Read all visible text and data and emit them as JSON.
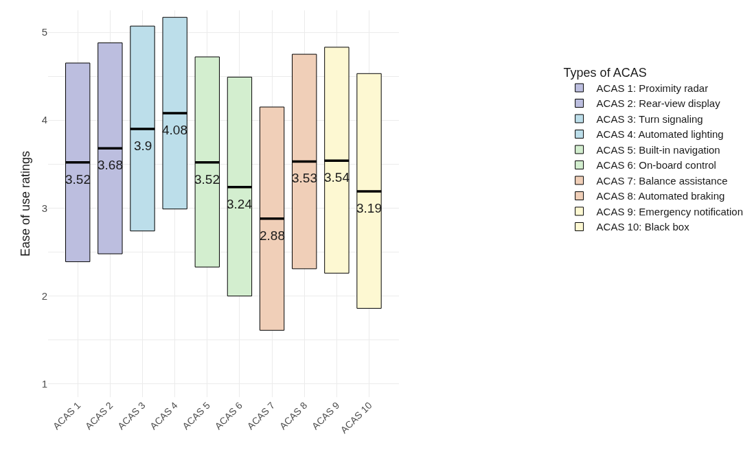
{
  "chart_data": {
    "type": "box",
    "ylabel": "Ease of use ratings",
    "legend_title": "Types of ACAS",
    "categories": [
      "ACAS 1",
      "ACAS 2",
      "ACAS 3",
      "ACAS 4",
      "ACAS 5",
      "ACAS 6",
      "ACAS 7",
      "ACAS 8",
      "ACAS 9",
      "ACAS 10"
    ],
    "series": [
      {
        "name": "ACAS 1: Proximity radar",
        "color": "#bcbedf",
        "x": [
          "ACAS 1"
        ],
        "boxes": [
          {
            "low": 2.39,
            "q1": 2.39,
            "median": 3.52,
            "q3": 4.65,
            "high": 4.65
          }
        ],
        "value_labels": [
          "3.52"
        ]
      },
      {
        "name": "ACAS 2: Rear-view display",
        "color": "#bcbedf",
        "x": [
          "ACAS 2"
        ],
        "boxes": [
          {
            "low": 2.48,
            "q1": 2.48,
            "median": 3.68,
            "q3": 4.88,
            "high": 4.88
          }
        ],
        "value_labels": [
          "3.68"
        ]
      },
      {
        "name": "ACAS 3: Turn signaling",
        "color": "#bcdeea",
        "x": [
          "ACAS 3"
        ],
        "boxes": [
          {
            "low": 2.74,
            "q1": 2.74,
            "median": 3.9,
            "q3": 5.07,
            "high": 5.07
          }
        ],
        "value_labels": [
          "3.9"
        ]
      },
      {
        "name": "ACAS 4: Automated lighting",
        "color": "#bcdeea",
        "x": [
          "ACAS 4"
        ],
        "boxes": [
          {
            "low": 2.99,
            "q1": 2.99,
            "median": 4.08,
            "q3": 5.17,
            "high": 5.17
          }
        ],
        "value_labels": [
          "4.08"
        ]
      },
      {
        "name": "ACAS 5: Built-in navigation",
        "color": "#d3eecf",
        "x": [
          "ACAS 5"
        ],
        "boxes": [
          {
            "low": 2.33,
            "q1": 2.33,
            "median": 3.52,
            "q3": 4.72,
            "high": 4.72
          }
        ],
        "value_labels": [
          "3.52"
        ]
      },
      {
        "name": "ACAS 6: On-board control",
        "color": "#d3eecf",
        "x": [
          "ACAS 6"
        ],
        "boxes": [
          {
            "low": 2.0,
            "q1": 2.0,
            "median": 3.24,
            "q3": 4.49,
            "high": 4.49
          }
        ],
        "value_labels": [
          "3.24"
        ]
      },
      {
        "name": "ACAS 7: Balance assistance",
        "color": "#f0cfb8",
        "x": [
          "ACAS 7"
        ],
        "boxes": [
          {
            "low": 1.61,
            "q1": 1.61,
            "median": 2.88,
            "q3": 4.15,
            "high": 4.15
          }
        ],
        "value_labels": [
          "2.88"
        ]
      },
      {
        "name": "ACAS 8: Automated braking",
        "color": "#f0cfb8",
        "x": [
          "ACAS 8"
        ],
        "boxes": [
          {
            "low": 2.31,
            "q1": 2.31,
            "median": 3.53,
            "q3": 4.75,
            "high": 4.75
          }
        ],
        "value_labels": [
          "3.53"
        ]
      },
      {
        "name": "ACAS 9: Emergency notification",
        "color": "#fdf8d2",
        "x": [
          "ACAS 9"
        ],
        "boxes": [
          {
            "low": 2.26,
            "q1": 2.26,
            "median": 3.54,
            "q3": 4.83,
            "high": 4.83
          }
        ],
        "value_labels": [
          "3.54"
        ]
      },
      {
        "name": "ACAS 10: Black box",
        "color": "#fdf8d2",
        "x": [
          "ACAS 10"
        ],
        "boxes": [
          {
            "low": 1.86,
            "q1": 1.86,
            "median": 3.19,
            "q3": 4.53,
            "high": 4.53
          }
        ],
        "value_labels": [
          "3.19"
        ]
      }
    ],
    "ylim": [
      0.85,
      5.25
    ],
    "yticks": [
      1,
      {
        "value": 1.5,
        "label": null
      },
      2,
      {
        "value": 2.5,
        "label": null
      },
      3,
      {
        "value": 3.5,
        "label": null
      },
      4,
      {
        "value": 4.5,
        "label": null
      },
      5
    ],
    "grid": true,
    "legend": "right"
  }
}
